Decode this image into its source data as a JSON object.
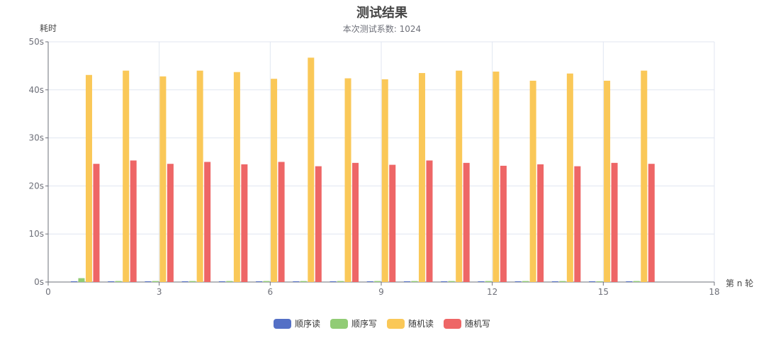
{
  "chart_data": {
    "type": "bar",
    "title": "测试结果",
    "subtitle": "本次测试系数: 1024",
    "ylabel": "耗时",
    "xlabel": "第 n 轮",
    "xlim": [
      0,
      18
    ],
    "ylim": [
      0,
      50
    ],
    "xticks": [
      0,
      3,
      6,
      9,
      12,
      15,
      18
    ],
    "xtick_labels": [
      "0",
      "3",
      "6",
      "9",
      "12",
      "15",
      "18"
    ],
    "yticks": [
      0,
      10,
      20,
      30,
      40,
      50
    ],
    "ytick_labels": [
      "0s",
      "10s",
      "20s",
      "30s",
      "40s",
      "50s"
    ],
    "grid": true,
    "legend_position": "bottom",
    "x": [
      1,
      2,
      3,
      4,
      5,
      6,
      7,
      8,
      9,
      10,
      11,
      12,
      13,
      14,
      15,
      16
    ],
    "series": [
      {
        "name": "顺序读",
        "color": "#5470c6",
        "values": [
          0.1,
          0.1,
          0.1,
          0.1,
          0.1,
          0.1,
          0.1,
          0.1,
          0.1,
          0.1,
          0.1,
          0.1,
          0.1,
          0.1,
          0.1,
          0.1
        ]
      },
      {
        "name": "顺序写",
        "color": "#91cc75",
        "values": [
          0.8,
          0.2,
          0.2,
          0.2,
          0.2,
          0.2,
          0.2,
          0.2,
          0.2,
          0.2,
          0.2,
          0.2,
          0.2,
          0.2,
          0.1,
          0.2
        ]
      },
      {
        "name": "随机读",
        "color": "#fac858",
        "values": [
          43.1,
          44.0,
          42.8,
          44.0,
          43.7,
          42.3,
          46.7,
          42.4,
          42.2,
          43.5,
          44.0,
          43.8,
          41.9,
          43.4,
          41.9,
          44.0
        ]
      },
      {
        "name": "随机写",
        "color": "#ee6666",
        "values": [
          24.6,
          25.3,
          24.6,
          25.0,
          24.5,
          25.0,
          24.1,
          24.8,
          24.4,
          25.3,
          24.8,
          24.2,
          24.5,
          24.1,
          24.8,
          24.6
        ]
      }
    ]
  }
}
